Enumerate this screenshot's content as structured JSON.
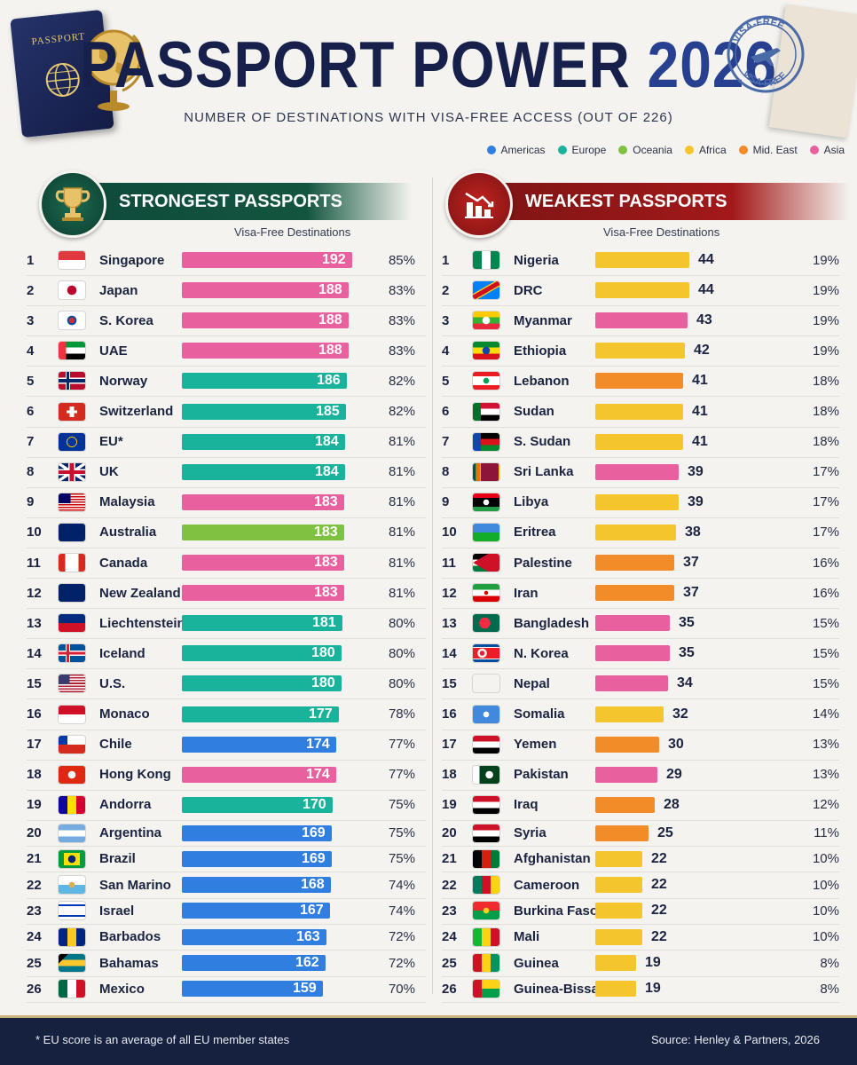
{
  "title": "PASSPORT POWER",
  "title_year": "2026",
  "subtitle": "NUMBER OF DESTINATIONS WITH VISA-FREE ACCESS (OUT OF 226)",
  "passport_label": "PASSPORT",
  "stamp_text_top": "VISA-FREE",
  "stamp_text_bottom": "VISA-FREE",
  "colors": {
    "Americas": "#2f7ee0",
    "Europe": "#19b39c",
    "Oceania": "#7fc241",
    "Africa": "#f5c52e",
    "Mid. East": "#f28c28",
    "Asia": "#e8609e"
  },
  "legend": [
    {
      "label": "Americas",
      "color": "#2f7ee0"
    },
    {
      "label": "Europe",
      "color": "#19b39c"
    },
    {
      "label": "Oceania",
      "color": "#7fc241"
    },
    {
      "label": "Africa",
      "color": "#f5c52e"
    },
    {
      "label": "Mid. East",
      "color": "#f28c28"
    },
    {
      "label": "Asia",
      "color": "#e8609e"
    }
  ],
  "left_panel": {
    "title": "STRONGEST PASSPORTS",
    "column_header": "Visa-Free Destinations"
  },
  "right_panel": {
    "title": "WEAKEST PASSPORTS",
    "column_header": "Visa-Free Destinations"
  },
  "footer": {
    "footnote": "* EU score is an average of all EU member states",
    "source": "Source: Henley & Partners, 2026"
  },
  "chart_data": [
    {
      "type": "bar",
      "title": "STRONGEST PASSPORTS",
      "ylabel": "Visa-Free Destinations",
      "ylim": [
        0,
        226
      ],
      "rows": [
        {
          "rank": "1",
          "country": "Singapore",
          "value": 192,
          "pct": "85%",
          "region": "Asia",
          "flag": "singapore-flag"
        },
        {
          "rank": "2",
          "country": "Japan",
          "value": 188,
          "pct": "83%",
          "region": "Asia",
          "flag": "japan-flag"
        },
        {
          "rank": "3",
          "country": "S. Korea",
          "value": 188,
          "pct": "83%",
          "region": "Asia",
          "flag": "south-korea-flag"
        },
        {
          "rank": "4",
          "country": "UAE",
          "value": 188,
          "pct": "83%",
          "region": "Asia",
          "flag": "uae-flag"
        },
        {
          "rank": "5",
          "country": "Norway",
          "value": 186,
          "pct": "82%",
          "region": "Europe",
          "flag": "norway-flag"
        },
        {
          "rank": "6",
          "country": "Switzerland",
          "value": 185,
          "pct": "82%",
          "region": "Europe",
          "flag": "switzerland-flag"
        },
        {
          "rank": "7",
          "country": "EU*",
          "value": 184,
          "pct": "81%",
          "region": "Europe",
          "flag": "eu-flag"
        },
        {
          "rank": "8",
          "country": "UK",
          "value": 184,
          "pct": "81%",
          "region": "Europe",
          "flag": "uk-flag"
        },
        {
          "rank": "9",
          "country": "Malaysia",
          "value": 183,
          "pct": "81%",
          "region": "Asia",
          "flag": "malaysia-flag"
        },
        {
          "rank": "10",
          "country": "Australia",
          "value": 183,
          "pct": "81%",
          "region": "Oceania",
          "flag": "australia-flag"
        },
        {
          "rank": "11",
          "country": "Canada",
          "value": 183,
          "pct": "81%",
          "region": "Asia",
          "flag": "canada-flag"
        },
        {
          "rank": "12",
          "country": "New Zealand",
          "value": 183,
          "pct": "81%",
          "region": "Asia",
          "flag": "new-zealand-flag"
        },
        {
          "rank": "13",
          "country": "Liechtenstein",
          "value": 181,
          "pct": "80%",
          "region": "Europe",
          "flag": "liechtenstein-flag"
        },
        {
          "rank": "14",
          "country": "Iceland",
          "value": 180,
          "pct": "80%",
          "region": "Europe",
          "flag": "iceland-flag"
        },
        {
          "rank": "15",
          "country": "U.S.",
          "value": 180,
          "pct": "80%",
          "region": "Europe",
          "flag": "us-flag"
        },
        {
          "rank": "16",
          "country": "Monaco",
          "value": 177,
          "pct": "78%",
          "region": "Europe",
          "flag": "monaco-flag"
        },
        {
          "rank": "17",
          "country": "Chile",
          "value": 174,
          "pct": "77%",
          "region": "Americas",
          "flag": "chile-flag"
        },
        {
          "rank": "18",
          "country": "Hong Kong",
          "value": 174,
          "pct": "77%",
          "region": "Asia",
          "flag": "hong-kong-flag"
        },
        {
          "rank": "19",
          "country": "Andorra",
          "value": 170,
          "pct": "75%",
          "region": "Europe",
          "flag": "andorra-flag"
        },
        {
          "rank": "20",
          "country": "Argentina",
          "value": 169,
          "pct": "75%",
          "region": "Americas",
          "flag": "argentina-flag"
        },
        {
          "rank": "21",
          "country": "Brazil",
          "value": 169,
          "pct": "75%",
          "region": "Americas",
          "flag": "brazil-flag"
        },
        {
          "rank": "22",
          "country": "San Marino",
          "value": 168,
          "pct": "74%",
          "region": "Americas",
          "flag": "san-marino-flag"
        },
        {
          "rank": "23",
          "country": "Israel",
          "value": 167,
          "pct": "74%",
          "region": "Americas",
          "flag": "israel-flag"
        },
        {
          "rank": "24",
          "country": "Barbados",
          "value": 163,
          "pct": "72%",
          "region": "Americas",
          "flag": "barbados-flag"
        },
        {
          "rank": "25",
          "country": "Bahamas",
          "value": 162,
          "pct": "72%",
          "region": "Americas",
          "flag": "bahamas-flag"
        },
        {
          "rank": "26",
          "country": "Mexico",
          "value": 159,
          "pct": "70%",
          "region": "Americas",
          "flag": "mexico-flag"
        }
      ]
    },
    {
      "type": "bar",
      "title": "WEAKEST PASSPORTS",
      "ylabel": "Visa-Free Destinations",
      "ylim": [
        0,
        226
      ],
      "rows": [
        {
          "rank": "1",
          "country": "Nigeria",
          "value": 44,
          "pct": "19%",
          "region": "Africa",
          "flag": "nigeria-flag"
        },
        {
          "rank": "2",
          "country": "DRC",
          "value": 44,
          "pct": "19%",
          "region": "Africa",
          "flag": "drc-flag"
        },
        {
          "rank": "3",
          "country": "Myanmar",
          "value": 43,
          "pct": "19%",
          "region": "Asia",
          "flag": "myanmar-flag"
        },
        {
          "rank": "4",
          "country": "Ethiopia",
          "value": 42,
          "pct": "19%",
          "region": "Africa",
          "flag": "ethiopia-flag"
        },
        {
          "rank": "5",
          "country": "Lebanon",
          "value": 41,
          "pct": "18%",
          "region": "Mid. East",
          "flag": "lebanon-flag"
        },
        {
          "rank": "6",
          "country": "Sudan",
          "value": 41,
          "pct": "18%",
          "region": "Africa",
          "flag": "sudan-flag"
        },
        {
          "rank": "7",
          "country": "S. Sudan",
          "value": 41,
          "pct": "18%",
          "region": "Africa",
          "flag": "south-sudan-flag"
        },
        {
          "rank": "8",
          "country": "Sri Lanka",
          "value": 39,
          "pct": "17%",
          "region": "Asia",
          "flag": "sri-lanka-flag"
        },
        {
          "rank": "9",
          "country": "Libya",
          "value": 39,
          "pct": "17%",
          "region": "Africa",
          "flag": "libya-flag"
        },
        {
          "rank": "10",
          "country": "Eritrea",
          "value": 38,
          "pct": "17%",
          "region": "Africa",
          "flag": "eritrea-flag"
        },
        {
          "rank": "11",
          "country": "Palestine",
          "value": 37,
          "pct": "16%",
          "region": "Mid. East",
          "flag": "palestine-flag"
        },
        {
          "rank": "12",
          "country": "Iran",
          "value": 37,
          "pct": "16%",
          "region": "Mid. East",
          "flag": "iran-flag"
        },
        {
          "rank": "13",
          "country": "Bangladesh",
          "value": 35,
          "pct": "15%",
          "region": "Asia",
          "flag": "bangladesh-flag"
        },
        {
          "rank": "14",
          "country": "N. Korea",
          "value": 35,
          "pct": "15%",
          "region": "Asia",
          "flag": "north-korea-flag"
        },
        {
          "rank": "15",
          "country": "Nepal",
          "value": 34,
          "pct": "15%",
          "region": "Asia",
          "flag": "nepal-flag"
        },
        {
          "rank": "16",
          "country": "Somalia",
          "value": 32,
          "pct": "14%",
          "region": "Africa",
          "flag": "somalia-flag"
        },
        {
          "rank": "17",
          "country": "Yemen",
          "value": 30,
          "pct": "13%",
          "region": "Mid. East",
          "flag": "yemen-flag"
        },
        {
          "rank": "18",
          "country": "Pakistan",
          "value": 29,
          "pct": "13%",
          "region": "Asia",
          "flag": "pakistan-flag"
        },
        {
          "rank": "19",
          "country": "Iraq",
          "value": 28,
          "pct": "12%",
          "region": "Mid. East",
          "flag": "iraq-flag"
        },
        {
          "rank": "20",
          "country": "Syria",
          "value": 25,
          "pct": "11%",
          "region": "Mid. East",
          "flag": "syria-flag"
        },
        {
          "rank": "21",
          "country": "Afghanistan",
          "value": 22,
          "pct": "10%",
          "region": "Africa",
          "flag": "afghanistan-flag"
        },
        {
          "rank": "22",
          "country": "Cameroon",
          "value": 22,
          "pct": "10%",
          "region": "Africa",
          "flag": "cameroon-flag"
        },
        {
          "rank": "23",
          "country": "Burkina Faso",
          "value": 22,
          "pct": "10%",
          "region": "Africa",
          "flag": "burkina-faso-flag"
        },
        {
          "rank": "24",
          "country": "Mali",
          "value": 22,
          "pct": "10%",
          "region": "Africa",
          "flag": "mali-flag"
        },
        {
          "rank": "25",
          "country": "Guinea",
          "value": 19,
          "pct": "8%",
          "region": "Africa",
          "flag": "guinea-flag"
        },
        {
          "rank": "26",
          "country": "Guinea-Bissau",
          "value": 19,
          "pct": "8%",
          "region": "Africa",
          "flag": "guinea-bissau-flag"
        }
      ]
    }
  ]
}
